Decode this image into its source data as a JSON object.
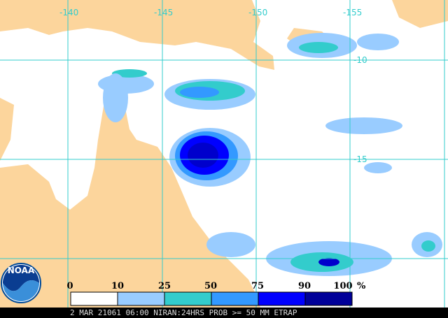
{
  "map": {
    "longitude_labels": [
      "-140",
      "-145",
      "-150",
      "-155"
    ],
    "latitude_labels": [
      "-10",
      "-15"
    ]
  },
  "logo": {
    "text": "NOAA"
  },
  "legend": {
    "labels": [
      "0",
      "10",
      "25",
      "50",
      "75",
      "90",
      "100"
    ],
    "unit": "%"
  },
  "footer": {
    "text": "2 MAR 21061 06:00 NIRAN:24HRS PROB >= 50 MM ETRAP"
  }
}
